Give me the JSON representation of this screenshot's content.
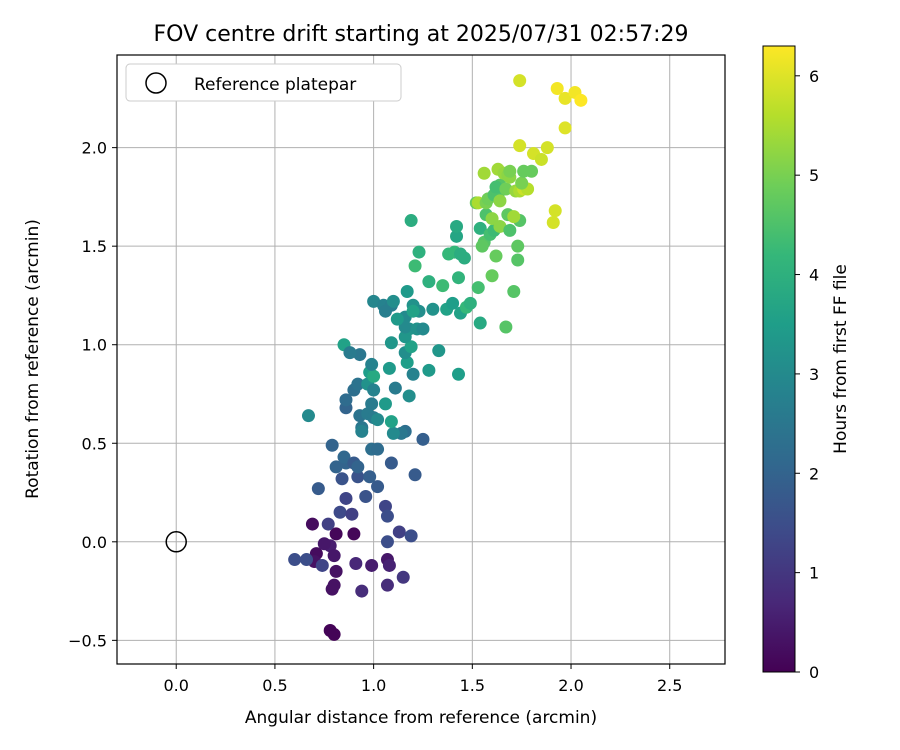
{
  "chart_data": {
    "type": "scatter",
    "title": "FOV centre drift starting at 2025/07/31 02:57:29",
    "xlabel": "Angular distance from reference (arcmin)",
    "ylabel": "Rotation from reference (arcmin)",
    "xlim": [
      -0.3,
      2.78
    ],
    "ylim": [
      -0.62,
      2.47
    ],
    "xticks": [
      0.0,
      0.5,
      1.0,
      1.5,
      2.0,
      2.5
    ],
    "xtick_labels": [
      "0.0",
      "0.5",
      "1.0",
      "1.5",
      "2.0",
      "2.5"
    ],
    "yticks": [
      -0.5,
      0.0,
      0.5,
      1.0,
      1.5,
      2.0
    ],
    "ytick_labels": [
      "−0.5",
      "0.0",
      "0.5",
      "1.0",
      "1.5",
      "2.0"
    ],
    "grid": true,
    "legend": {
      "position": "top-left",
      "label": "Reference platepar"
    },
    "reference": {
      "x": 0.0,
      "y": 0.0
    },
    "colorbar": {
      "label": "Hours from first FF file",
      "range": [
        0,
        6.3
      ],
      "ticks": [
        0,
        1,
        2,
        3,
        4,
        5,
        6
      ],
      "tick_labels": [
        "0",
        "1",
        "2",
        "3",
        "4",
        "5",
        "6"
      ],
      "colormap": "viridis"
    },
    "colormap_stops": [
      "#440154",
      "#482878",
      "#3e4a89",
      "#31688e",
      "#26828e",
      "#1f9e89",
      "#35b779",
      "#6ece58",
      "#b5de2b",
      "#fde725"
    ],
    "points": [
      [
        0.78,
        -0.45,
        0.05
      ],
      [
        0.8,
        -0.47,
        0.05
      ],
      [
        0.8,
        -0.22,
        0.3
      ],
      [
        0.79,
        -0.24,
        0.3
      ],
      [
        0.81,
        -0.15,
        0.3
      ],
      [
        0.71,
        -0.06,
        0.2
      ],
      [
        0.7,
        -0.1,
        0.3
      ],
      [
        0.78,
        -0.02,
        0.5
      ],
      [
        0.75,
        -0.01,
        0.4
      ],
      [
        0.8,
        -0.07,
        0.4
      ],
      [
        0.81,
        0.04,
        0.1
      ],
      [
        0.9,
        0.04,
        0.1
      ],
      [
        0.69,
        0.09,
        0.2
      ],
      [
        0.77,
        0.09,
        1.2
      ],
      [
        0.6,
        -0.09,
        1.5
      ],
      [
        0.66,
        -0.09,
        1.5
      ],
      [
        0.74,
        -0.12,
        1.3
      ],
      [
        0.91,
        -0.11,
        0.7
      ],
      [
        0.99,
        -0.12,
        0.5
      ],
      [
        0.94,
        -0.25,
        0.8
      ],
      [
        1.07,
        -0.09,
        0.4
      ],
      [
        1.08,
        -0.12,
        0.6
      ],
      [
        1.07,
        -0.22,
        0.8
      ],
      [
        1.15,
        -0.18,
        1.0
      ],
      [
        1.07,
        0.0,
        1.5
      ],
      [
        1.13,
        0.05,
        1.2
      ],
      [
        1.19,
        0.03,
        1.5
      ],
      [
        0.83,
        0.15,
        1.4
      ],
      [
        0.89,
        0.14,
        1.2
      ],
      [
        1.06,
        0.18,
        1.3
      ],
      [
        1.07,
        0.13,
        1.5
      ],
      [
        0.86,
        0.22,
        1.3
      ],
      [
        0.96,
        0.23,
        1.6
      ],
      [
        0.72,
        0.27,
        1.8
      ],
      [
        0.84,
        0.32,
        1.6
      ],
      [
        0.92,
        0.33,
        1.6
      ],
      [
        0.98,
        0.33,
        1.9
      ],
      [
        1.02,
        0.28,
        1.8
      ],
      [
        1.21,
        0.34,
        1.8
      ],
      [
        0.81,
        0.38,
        2.0
      ],
      [
        0.86,
        0.4,
        2.0
      ],
      [
        0.85,
        0.43,
        2.1
      ],
      [
        0.9,
        0.4,
        1.8
      ],
      [
        0.92,
        0.38,
        2.0
      ],
      [
        1.09,
        0.4,
        1.8
      ],
      [
        0.79,
        0.49,
        2.0
      ],
      [
        0.99,
        0.47,
        2.3
      ],
      [
        1.02,
        0.47,
        2.2
      ],
      [
        1.25,
        0.52,
        1.9
      ],
      [
        1.16,
        0.56,
        2.3
      ],
      [
        1.14,
        0.55,
        2.5
      ],
      [
        1.1,
        0.55,
        3.0
      ],
      [
        0.94,
        0.58,
        2.5
      ],
      [
        0.94,
        0.56,
        2.8
      ],
      [
        0.67,
        0.64,
        3.0
      ],
      [
        0.86,
        0.68,
        2.0
      ],
      [
        0.86,
        0.72,
        2.2
      ],
      [
        0.93,
        0.64,
        2.4
      ],
      [
        0.97,
        0.65,
        2.6
      ],
      [
        1.0,
        0.63,
        2.6
      ],
      [
        1.02,
        0.62,
        3.0
      ],
      [
        1.09,
        0.61,
        3.6
      ],
      [
        0.99,
        0.7,
        2.6
      ],
      [
        1.06,
        0.7,
        3.4
      ],
      [
        0.9,
        0.77,
        2.3
      ],
      [
        0.92,
        0.8,
        2.4
      ],
      [
        0.97,
        0.8,
        3.2
      ],
      [
        1.0,
        0.77,
        2.8
      ],
      [
        1.11,
        0.78,
        2.6
      ],
      [
        1.18,
        0.74,
        3.1
      ],
      [
        0.98,
        0.86,
        3.5
      ],
      [
        1.0,
        0.84,
        3.8
      ],
      [
        1.08,
        0.88,
        3.4
      ],
      [
        1.17,
        0.91,
        3.5
      ],
      [
        1.2,
        0.85,
        2.8
      ],
      [
        1.28,
        0.87,
        3.4
      ],
      [
        0.93,
        0.95,
        2.5
      ],
      [
        0.99,
        0.9,
        2.8
      ],
      [
        1.16,
        0.96,
        3.1
      ],
      [
        1.19,
        0.99,
        3.6
      ],
      [
        1.33,
        0.97,
        3.3
      ],
      [
        1.43,
        0.85,
        3.5
      ],
      [
        0.85,
        1.0,
        3.6
      ],
      [
        0.88,
        0.96,
        2.6
      ],
      [
        1.09,
        1.01,
        3.3
      ],
      [
        1.16,
        1.04,
        3.3
      ],
      [
        1.18,
        1.08,
        3.3
      ],
      [
        1.16,
        1.09,
        3.0
      ],
      [
        1.22,
        1.08,
        3.2
      ],
      [
        1.25,
        1.08,
        3.0
      ],
      [
        1.16,
        1.14,
        3.0
      ],
      [
        1.0,
        1.22,
        2.9
      ],
      [
        1.05,
        1.2,
        2.8
      ],
      [
        1.09,
        1.2,
        2.7
      ],
      [
        1.1,
        1.22,
        3.1
      ],
      [
        1.06,
        1.17,
        2.7
      ],
      [
        1.2,
        1.2,
        3.2
      ],
      [
        1.23,
        1.17,
        3.1
      ],
      [
        1.3,
        1.18,
        3.2
      ],
      [
        1.37,
        1.18,
        3.6
      ],
      [
        1.12,
        1.13,
        3.4
      ],
      [
        1.17,
        1.27,
        3.4
      ],
      [
        1.2,
        1.17,
        3.6
      ],
      [
        1.4,
        1.21,
        3.5
      ],
      [
        1.44,
        1.16,
        3.6
      ],
      [
        1.47,
        1.19,
        4.2
      ],
      [
        1.49,
        1.21,
        4.0
      ],
      [
        1.53,
        1.29,
        4.4
      ],
      [
        1.28,
        1.32,
        4.0
      ],
      [
        1.35,
        1.3,
        4.3
      ],
      [
        1.43,
        1.34,
        4.1
      ],
      [
        1.54,
        1.11,
        3.8
      ],
      [
        1.67,
        1.09,
        4.6
      ],
      [
        1.71,
        1.27,
        4.6
      ],
      [
        1.21,
        1.4,
        4.3
      ],
      [
        1.23,
        1.47,
        4.0
      ],
      [
        1.19,
        1.63,
        3.9
      ],
      [
        1.38,
        1.46,
        4.2
      ],
      [
        1.41,
        1.47,
        4.2
      ],
      [
        1.44,
        1.46,
        3.9
      ],
      [
        1.46,
        1.44,
        3.9
      ],
      [
        1.42,
        1.55,
        3.7
      ],
      [
        1.42,
        1.6,
        3.8
      ],
      [
        1.54,
        1.59,
        4.0
      ],
      [
        1.56,
        1.52,
        4.6
      ],
      [
        1.55,
        1.5,
        4.7
      ],
      [
        1.59,
        1.56,
        4.4
      ],
      [
        1.61,
        1.58,
        4.3
      ],
      [
        1.57,
        1.66,
        4.5
      ],
      [
        1.6,
        1.64,
        5.2
      ],
      [
        1.64,
        1.6,
        5.2
      ],
      [
        1.62,
        1.45,
        4.8
      ],
      [
        1.6,
        1.35,
        4.8
      ],
      [
        1.73,
        1.43,
        4.6
      ],
      [
        1.73,
        1.5,
        4.7
      ],
      [
        1.69,
        1.58,
        4.5
      ],
      [
        1.74,
        1.63,
        4.6
      ],
      [
        1.68,
        1.66,
        4.7
      ],
      [
        1.71,
        1.65,
        5.4
      ],
      [
        1.52,
        1.72,
        4.8
      ],
      [
        1.53,
        1.72,
        5.5
      ],
      [
        1.57,
        1.72,
        5.0
      ],
      [
        1.58,
        1.74,
        4.9
      ],
      [
        1.61,
        1.76,
        4.5
      ],
      [
        1.63,
        1.76,
        4.5
      ],
      [
        1.64,
        1.73,
        5.2
      ],
      [
        1.64,
        1.81,
        4.6
      ],
      [
        1.62,
        1.8,
        4.4
      ],
      [
        1.67,
        1.79,
        4.9
      ],
      [
        1.69,
        1.85,
        5.2
      ],
      [
        1.72,
        1.78,
        5.3
      ],
      [
        1.74,
        1.78,
        5.5
      ],
      [
        1.76,
        1.79,
        5.8
      ],
      [
        1.78,
        1.79,
        5.6
      ],
      [
        1.75,
        1.82,
        5.0
      ],
      [
        1.76,
        1.88,
        4.8
      ],
      [
        1.8,
        1.88,
        4.8
      ],
      [
        1.56,
        1.87,
        5.4
      ],
      [
        1.63,
        1.89,
        5.4
      ],
      [
        1.66,
        1.87,
        5.3
      ],
      [
        1.68,
        1.86,
        5.2
      ],
      [
        1.69,
        1.88,
        5.0
      ],
      [
        1.91,
        1.62,
        5.9
      ],
      [
        1.92,
        1.68,
        5.9
      ],
      [
        1.74,
        2.01,
        5.9
      ],
      [
        1.81,
        1.97,
        5.9
      ],
      [
        1.85,
        1.94,
        5.8
      ],
      [
        1.88,
        2.0,
        5.9
      ],
      [
        1.74,
        2.34,
        5.9
      ],
      [
        1.97,
        2.1,
        6.0
      ],
      [
        1.93,
        2.3,
        6.2
      ],
      [
        1.97,
        2.25,
        6.1
      ],
      [
        2.02,
        2.28,
        6.2
      ],
      [
        2.05,
        2.24,
        6.3
      ]
    ]
  }
}
